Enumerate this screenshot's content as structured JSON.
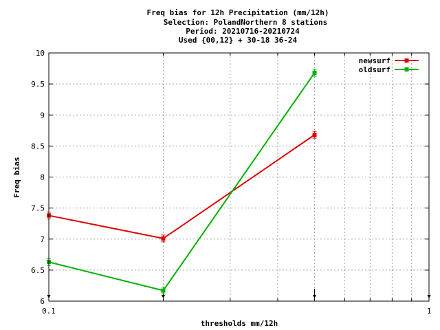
{
  "chart_data": {
    "type": "line",
    "title_lines": [
      "Freq bias  for 12h Precipitation (mm/12h)",
      "Selection: PolandNorthern      8 stations",
      "Period: 20210716-20210724",
      "Used {00,12} + 30-18 36-24"
    ],
    "xlabel": "thresholds mm/12h",
    "ylabel": "Freq bias",
    "xscale": "log",
    "xlim": [
      0.1,
      1
    ],
    "ylim": [
      6,
      10
    ],
    "x_tick_labels": [
      "0.1",
      "1"
    ],
    "y_ticks": [
      6,
      6.5,
      7,
      7.5,
      8,
      8.5,
      9,
      9.5,
      10
    ],
    "y_tick_labels": [
      "6",
      "6.5",
      "7",
      "7.5",
      "8",
      "8.5",
      "9",
      "9.5",
      "10"
    ],
    "grid": true,
    "legend_position": "top-right",
    "x": [
      0.1,
      0.2,
      0.5
    ],
    "series": [
      {
        "name": "newsurf",
        "color": "#e00000",
        "values": [
          7.38,
          7.01,
          8.68
        ]
      },
      {
        "name": "oldsurf",
        "color": "#00b000",
        "values": [
          6.63,
          6.17,
          9.68
        ]
      }
    ],
    "threshold_markers_x": [
      0.1,
      0.2,
      0.5,
      1
    ]
  }
}
